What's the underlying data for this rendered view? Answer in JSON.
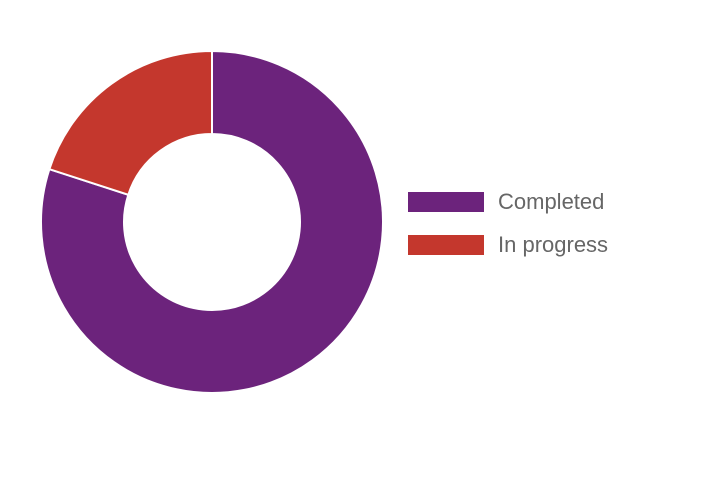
{
  "chart_data": {
    "type": "pie",
    "variant": "donut",
    "categories": [
      "Completed",
      "In progress"
    ],
    "values": [
      80,
      20
    ],
    "colors": [
      "#6c237c",
      "#c4372d"
    ],
    "legend_position": "right"
  }
}
